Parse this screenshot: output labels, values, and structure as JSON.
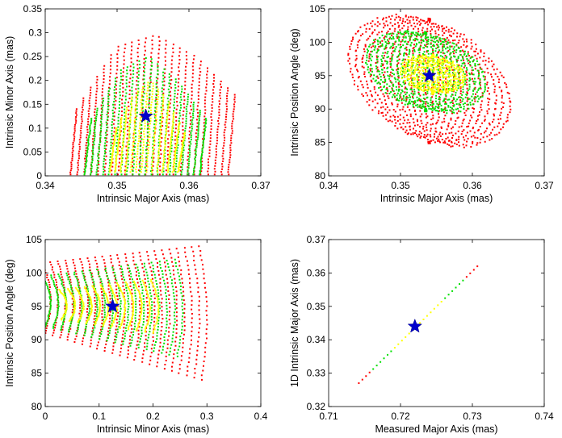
{
  "figure": {
    "colors": {
      "outer": "#ff0000",
      "mid": "#00e000",
      "inner": "#ffff00",
      "marker": "#0000cc"
    },
    "marker_icon": "star-icon"
  },
  "chart_data": [
    {
      "type": "scatter",
      "xlabel": "Intrinsic Major Axis (mas)",
      "ylabel": "Intrinsic Minor Axis (mas)",
      "xlim": [
        0.34,
        0.37
      ],
      "ylim": [
        0,
        0.35
      ],
      "xticks": [
        "0.34",
        "0.35",
        "0.36",
        "0.37"
      ],
      "yticks": [
        "0",
        "0.05",
        "0.1",
        "0.15",
        "0.2",
        "0.25",
        "0.3",
        "0.35"
      ],
      "grid": false,
      "best_fit": {
        "x": 0.354,
        "y": 0.125
      },
      "region": {
        "kind": "stripes",
        "outer": {
          "x_range": [
            0.3435,
            0.3655
          ],
          "y_top": [
            0.14,
            0.27,
            0.295,
            0.25,
            0.17
          ],
          "y_bottom": 0.003
        },
        "mid": {
          "x_range": [
            0.3455,
            0.3615
          ],
          "y_top": [
            0.12,
            0.22,
            0.25,
            0.2,
            0.12
          ],
          "y_bottom": 0.003
        },
        "inner": {
          "x_range": [
            0.349,
            0.3585
          ],
          "y_top": [
            0.1,
            0.17,
            0.2,
            0.16,
            0.09
          ],
          "y_bottom": 0.008
        }
      }
    },
    {
      "type": "scatter",
      "xlabel": "Intrinsic Major Axis (mas)",
      "ylabel": "Intrinsic Position Angle (deg)",
      "xlim": [
        0.34,
        0.37
      ],
      "ylim": [
        80,
        105
      ],
      "xticks": [
        "0.34",
        "0.35",
        "0.36",
        "0.37"
      ],
      "yticks": [
        "80",
        "85",
        "90",
        "95",
        "100",
        "105"
      ],
      "grid": false,
      "best_fit": {
        "x": 0.354,
        "y": 95
      },
      "region": {
        "kind": "ellipses",
        "outer": {
          "cx": 0.354,
          "cy": 94.2,
          "rx": 0.0112,
          "ry": 10.8,
          "tilt": -0.55
        },
        "mid": {
          "cx": 0.3535,
          "cy": 95.6,
          "rx": 0.0083,
          "ry": 6.8,
          "tilt": -0.45
        },
        "inner": {
          "cx": 0.3545,
          "cy": 95.2,
          "rx": 0.0045,
          "ry": 3.3,
          "tilt": -0.3
        }
      }
    },
    {
      "type": "scatter",
      "xlabel": "Intrinsic Minor Axis (mas)",
      "ylabel": "Intrinsic Position Angle (deg)",
      "xlim": [
        0,
        0.4
      ],
      "ylim": [
        80,
        105
      ],
      "xticks": [
        "0",
        "0.1",
        "0.2",
        "0.3",
        "0.4"
      ],
      "yticks": [
        "80",
        "85",
        "90",
        "95",
        "100",
        "105"
      ],
      "grid": false,
      "best_fit": {
        "x": 0.125,
        "y": 95
      },
      "region": {
        "kind": "fan",
        "outer": {
          "x_range": [
            0.0,
            0.29
          ],
          "top": [
            101.5,
            104
          ],
          "bottom": [
            91,
            84
          ]
        },
        "mid": {
          "x_range": [
            0.0,
            0.245
          ],
          "top": [
            99.5,
            102
          ],
          "bottom": [
            92,
            87.5
          ]
        },
        "inner": {
          "x_range": [
            0.03,
            0.2
          ],
          "top": [
            97.5,
            99
          ],
          "bottom": [
            93,
            91
          ]
        }
      }
    },
    {
      "type": "scatter",
      "xlabel": "Measured Major Axis (mas)",
      "ylabel": "1D Intrinsic Major Axis (mas)",
      "xlim": [
        0.71,
        0.74
      ],
      "ylim": [
        0.32,
        0.37
      ],
      "xticks": [
        "0.71",
        "0.72",
        "0.73",
        "0.74"
      ],
      "yticks": [
        "0.32",
        "0.33",
        "0.34",
        "0.35",
        "0.36",
        "0.37"
      ],
      "grid": false,
      "best_fit": {
        "x": 0.722,
        "y": 0.344
      },
      "region": {
        "kind": "line",
        "start": {
          "x": 0.7142,
          "y": 0.327
        },
        "end": {
          "x": 0.7307,
          "y": 0.362
        },
        "segments": [
          {
            "from": 0.0,
            "to": 0.12,
            "color": "outer"
          },
          {
            "from": 0.12,
            "to": 0.3,
            "color": "mid"
          },
          {
            "from": 0.3,
            "to": 0.7,
            "color": "inner"
          },
          {
            "from": 0.7,
            "to": 0.88,
            "color": "mid"
          },
          {
            "from": 0.88,
            "to": 1.0,
            "color": "outer"
          }
        ]
      }
    }
  ]
}
